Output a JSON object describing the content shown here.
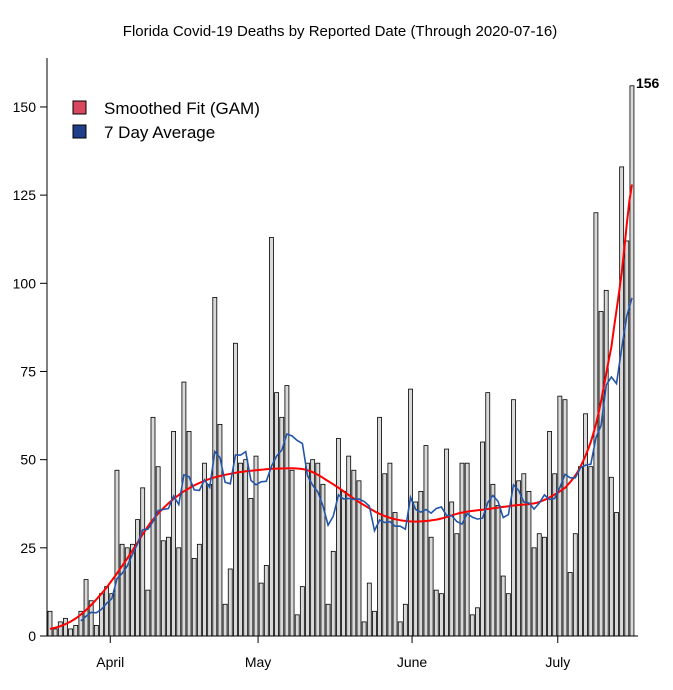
{
  "chart_data": {
    "type": "bar",
    "title": "Florida Covid-19 Deaths by Reported Date (Through 2020-07-16)",
    "xlabel": "",
    "ylabel": "",
    "ylim": [
      0,
      163
    ],
    "y_ticks": [
      0,
      25,
      50,
      75,
      100,
      125,
      150
    ],
    "x_ticks": [
      {
        "label": "April",
        "index": 11.7
      },
      {
        "label": "May",
        "index": 40.4
      },
      {
        "label": "June",
        "index": 70.3
      },
      {
        "label": "July",
        "index": 98.6
      }
    ],
    "last_value_label": "156",
    "daily_deaths": [
      7,
      2,
      4,
      5,
      2,
      3,
      7,
      16,
      10,
      3,
      12,
      14,
      12,
      47,
      26,
      25,
      26,
      33,
      42,
      13,
      62,
      48,
      27,
      28,
      58,
      25,
      72,
      58,
      22,
      26,
      49,
      43,
      96,
      60,
      9,
      19,
      83,
      49,
      50,
      39,
      51,
      15,
      20,
      113,
      69,
      62,
      71,
      47,
      6,
      14,
      49,
      50,
      49,
      43,
      9,
      24,
      56,
      41,
      51,
      47,
      44,
      4,
      15,
      7,
      62,
      46,
      49,
      35,
      4,
      9,
      70,
      38,
      41,
      54,
      28,
      13,
      12,
      53,
      38,
      29,
      49,
      49,
      6,
      8,
      55,
      69,
      43,
      37,
      17,
      12,
      67,
      44,
      46,
      41,
      25,
      29,
      28,
      58,
      46,
      68,
      67,
      18,
      29,
      48,
      63,
      48,
      120,
      92,
      98,
      45,
      35,
      133,
      112,
      156
    ],
    "smoothed_fit": {
      "index": [
        0,
        5,
        10,
        15,
        20,
        25,
        30,
        35,
        40,
        45,
        50,
        55,
        60,
        65,
        70,
        75,
        80,
        85,
        90,
        95,
        100,
        103,
        106,
        109,
        111,
        113
      ],
      "values": [
        2,
        5,
        12,
        22,
        33,
        40,
        44,
        46,
        47,
        47.5,
        47,
        43,
        38,
        34,
        32.5,
        33,
        35,
        36,
        37,
        38,
        42,
        48,
        60,
        82,
        103,
        128
      ]
    },
    "legend": {
      "position": "top-left",
      "entries": [
        {
          "label": "Smoothed Fit (GAM)",
          "color": "#d9485f"
        },
        {
          "label": "7 Day Average",
          "color": "#1f3f8a"
        }
      ]
    },
    "colors": {
      "bar": "#d9d9d9",
      "fit_line": "#ff0000",
      "avg_line": "#2355a8"
    }
  }
}
